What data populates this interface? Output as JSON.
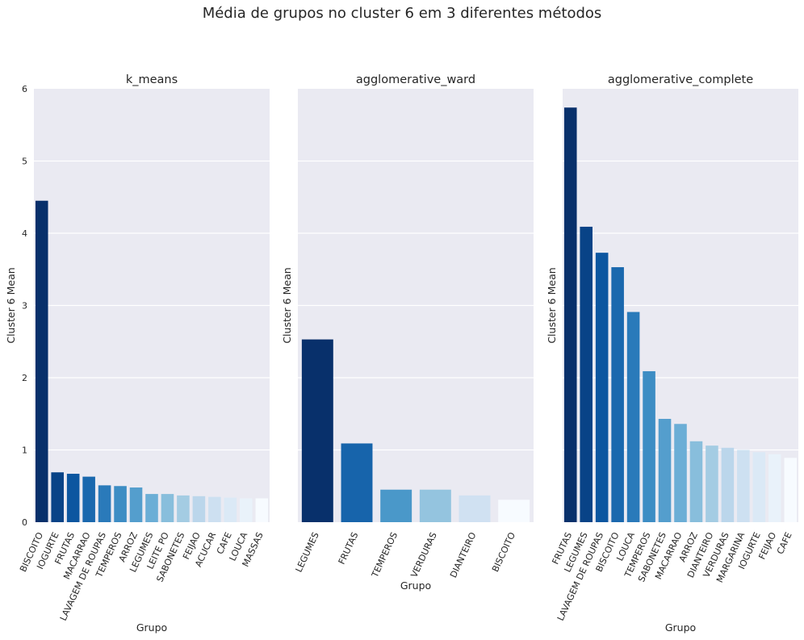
{
  "figure": {
    "suptitle": "Média de grupos no cluster 6 em 3 diferentes métodos"
  },
  "palette": [
    "#08306b",
    "#08519c",
    "#2171b5",
    "#4292c6",
    "#6baed6",
    "#9ecae1",
    "#c6dbef",
    "#deebf7",
    "#f7fbff"
  ],
  "chart_data": [
    {
      "type": "bar",
      "title": "k_means",
      "xlabel": "Grupo",
      "ylabel": "Cluster 6 Mean",
      "ylim": [
        0,
        6
      ],
      "yticks": [
        0,
        1,
        2,
        3,
        4,
        5,
        6
      ],
      "grid": true,
      "categories": [
        "BISCOITO",
        "IOGURTE",
        "FRUTAS",
        "MACARRAO",
        "LAVAGEM DE ROUPAS",
        "TEMPEROS",
        "ARROZ",
        "LEGUMES",
        "LEITE PO",
        "SABONETES",
        "FEIJAO",
        "ACUCAR",
        "CAFE",
        "LOUCA",
        "MASSAS"
      ],
      "values": [
        4.45,
        0.69,
        0.67,
        0.63,
        0.51,
        0.5,
        0.48,
        0.39,
        0.39,
        0.37,
        0.36,
        0.35,
        0.34,
        0.33,
        0.33
      ]
    },
    {
      "type": "bar",
      "title": "agglomerative_ward",
      "xlabel": "Grupo",
      "ylabel": "Cluster 6 Mean",
      "ylim": [
        0,
        6
      ],
      "grid": true,
      "categories": [
        "LEGUMES",
        "FRUTAS",
        "TEMPEROS",
        "VERDURAS",
        "DIANTEIRO",
        "BISCOITO"
      ],
      "values": [
        2.53,
        1.09,
        0.45,
        0.45,
        0.37,
        0.31
      ]
    },
    {
      "type": "bar",
      "title": "agglomerative_complete",
      "xlabel": "Grupo",
      "ylabel": "Cluster 6 Mean",
      "ylim": [
        0,
        6
      ],
      "grid": true,
      "categories": [
        "FRUTAS",
        "LEGUMES",
        "LAVAGEM DE ROUPAS",
        "BISCOITO",
        "LOUCA",
        "TEMPEROS",
        "SABONETES",
        "MACARRAO",
        "ARROZ",
        "DIANTEIRO",
        "VERDURAS",
        "MARGARINA",
        "IOGURTE",
        "FEIJAO",
        "CAFE"
      ],
      "values": [
        5.74,
        4.09,
        3.73,
        3.53,
        2.91,
        2.09,
        1.43,
        1.36,
        1.12,
        1.06,
        1.03,
        1.0,
        0.97,
        0.94,
        0.89
      ]
    }
  ]
}
